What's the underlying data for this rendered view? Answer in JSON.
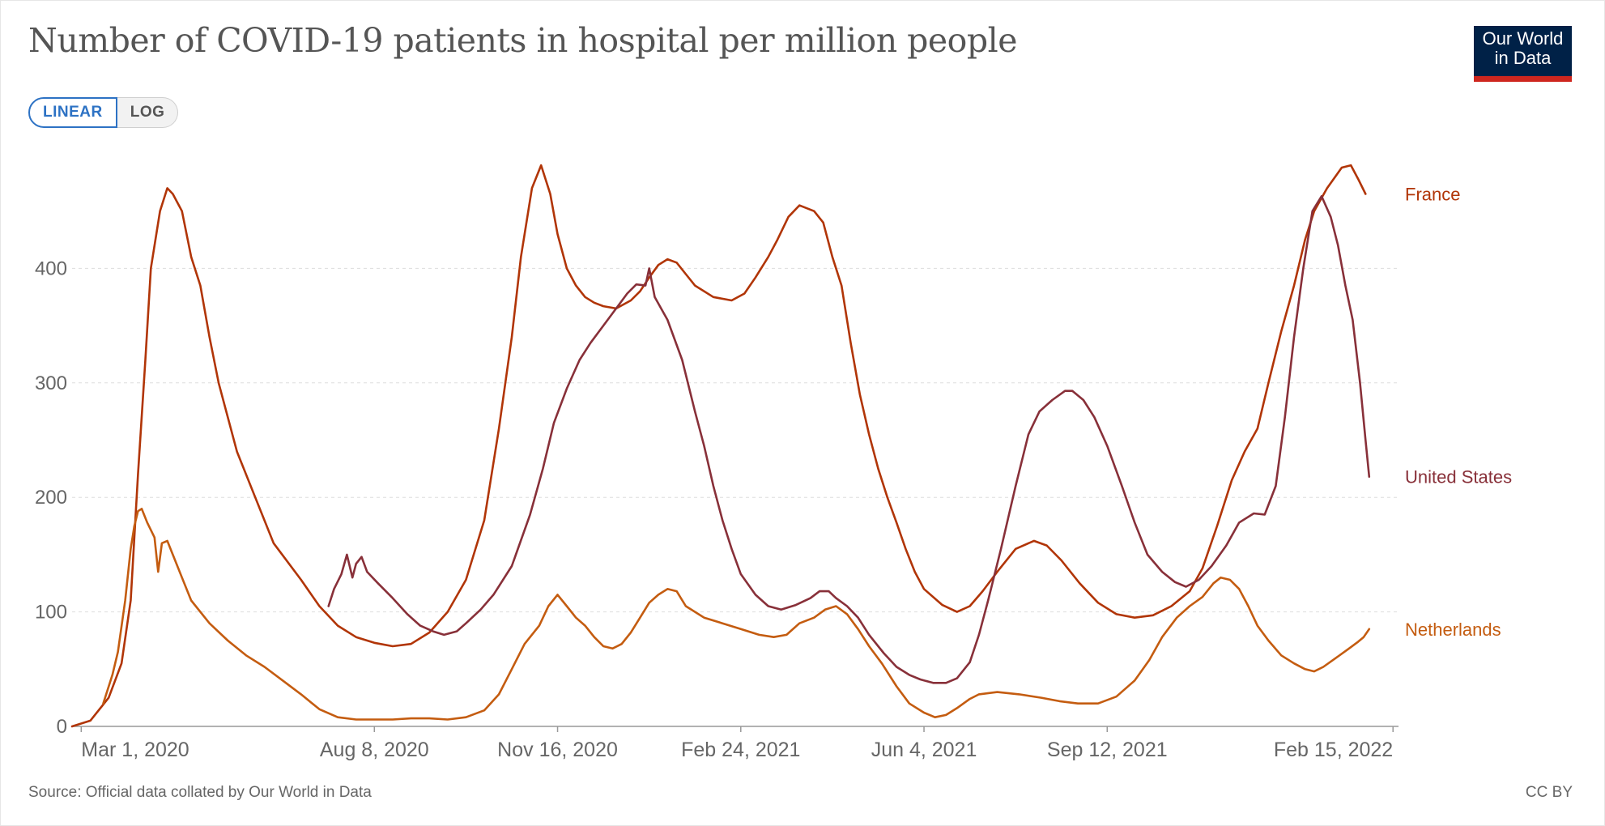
{
  "header": {
    "title": "Number of COVID-19 patients in hospital per million people",
    "logo_line1": "Our World",
    "logo_line2": "in Data"
  },
  "scale_toggle": {
    "linear_label": "LINEAR",
    "log_label": "LOG",
    "selected": "LINEAR"
  },
  "footer": {
    "source": "Source: Official data collated by Our World in Data",
    "license": "CC BY"
  },
  "colors": {
    "france": "#b13507",
    "united_states": "#883039",
    "netherlands": "#c45c10",
    "grid": "#dddddd",
    "axis": "#999999",
    "text": "#666666"
  },
  "chart_data": {
    "type": "line",
    "title": "Number of COVID-19 patients in hospital per million people",
    "xlabel": "",
    "ylabel": "",
    "x_unit": "days since 2020-03-01",
    "xlim": [
      -5,
      719
    ],
    "ylim": [
      0,
      500
    ],
    "yticks": [
      0,
      100,
      200,
      300,
      400
    ],
    "xticks": [
      {
        "label": "Mar 1, 2020",
        "x": 0
      },
      {
        "label": "Aug 8, 2020",
        "x": 160
      },
      {
        "label": "Nov 16, 2020",
        "x": 260
      },
      {
        "label": "Feb 24, 2021",
        "x": 360
      },
      {
        "label": "Jun 4, 2021",
        "x": 460
      },
      {
        "label": "Sep 12, 2021",
        "x": 560
      },
      {
        "label": "Feb 15, 2022",
        "x": 716
      }
    ],
    "grid": true,
    "series": [
      {
        "name": "France",
        "points": [
          [
            -5,
            0
          ],
          [
            5,
            5
          ],
          [
            15,
            25
          ],
          [
            22,
            55
          ],
          [
            27,
            110
          ],
          [
            31,
            220
          ],
          [
            35,
            320
          ],
          [
            38,
            400
          ],
          [
            43,
            450
          ],
          [
            47,
            470
          ],
          [
            50,
            465
          ],
          [
            55,
            450
          ],
          [
            60,
            410
          ],
          [
            65,
            385
          ],
          [
            70,
            340
          ],
          [
            75,
            300
          ],
          [
            85,
            240
          ],
          [
            95,
            200
          ],
          [
            105,
            160
          ],
          [
            120,
            128
          ],
          [
            130,
            105
          ],
          [
            140,
            88
          ],
          [
            150,
            78
          ],
          [
            160,
            73
          ],
          [
            170,
            70
          ],
          [
            180,
            72
          ],
          [
            190,
            82
          ],
          [
            200,
            100
          ],
          [
            210,
            128
          ],
          [
            220,
            180
          ],
          [
            228,
            260
          ],
          [
            235,
            340
          ],
          [
            240,
            410
          ],
          [
            246,
            470
          ],
          [
            251,
            490
          ],
          [
            256,
            465
          ],
          [
            260,
            430
          ],
          [
            265,
            400
          ],
          [
            270,
            385
          ],
          [
            275,
            375
          ],
          [
            280,
            370
          ],
          [
            285,
            367
          ],
          [
            292,
            365
          ],
          [
            300,
            372
          ],
          [
            305,
            380
          ],
          [
            310,
            392
          ],
          [
            315,
            403
          ],
          [
            320,
            408
          ],
          [
            325,
            405
          ],
          [
            330,
            395
          ],
          [
            335,
            385
          ],
          [
            345,
            375
          ],
          [
            355,
            372
          ],
          [
            362,
            378
          ],
          [
            368,
            392
          ],
          [
            375,
            410
          ],
          [
            380,
            425
          ],
          [
            386,
            445
          ],
          [
            392,
            455
          ],
          [
            400,
            450
          ],
          [
            405,
            440
          ],
          [
            410,
            410
          ],
          [
            415,
            385
          ],
          [
            420,
            335
          ],
          [
            425,
            290
          ],
          [
            430,
            255
          ],
          [
            435,
            225
          ],
          [
            440,
            200
          ],
          [
            445,
            178
          ],
          [
            450,
            155
          ],
          [
            455,
            135
          ],
          [
            460,
            120
          ],
          [
            470,
            106
          ],
          [
            478,
            100
          ],
          [
            485,
            105
          ],
          [
            492,
            118
          ],
          [
            500,
            135
          ],
          [
            510,
            155
          ],
          [
            520,
            162
          ],
          [
            527,
            158
          ],
          [
            535,
            145
          ],
          [
            545,
            125
          ],
          [
            555,
            108
          ],
          [
            565,
            98
          ],
          [
            575,
            95
          ],
          [
            585,
            97
          ],
          [
            595,
            105
          ],
          [
            605,
            118
          ],
          [
            612,
            138
          ],
          [
            620,
            175
          ],
          [
            628,
            215
          ],
          [
            635,
            240
          ],
          [
            642,
            260
          ],
          [
            648,
            300
          ],
          [
            655,
            345
          ],
          [
            662,
            385
          ],
          [
            668,
            425
          ],
          [
            673,
            450
          ],
          [
            680,
            470
          ],
          [
            688,
            488
          ],
          [
            693,
            490
          ],
          [
            697,
            478
          ],
          [
            701,
            465
          ]
        ]
      },
      {
        "name": "United States",
        "points": [
          [
            135,
            105
          ],
          [
            138,
            120
          ],
          [
            142,
            133
          ],
          [
            145,
            150
          ],
          [
            148,
            130
          ],
          [
            150,
            142
          ],
          [
            153,
            148
          ],
          [
            156,
            135
          ],
          [
            162,
            125
          ],
          [
            170,
            112
          ],
          [
            178,
            98
          ],
          [
            185,
            88
          ],
          [
            192,
            83
          ],
          [
            198,
            80
          ],
          [
            205,
            83
          ],
          [
            210,
            90
          ],
          [
            218,
            102
          ],
          [
            225,
            115
          ],
          [
            235,
            140
          ],
          [
            245,
            185
          ],
          [
            252,
            225
          ],
          [
            258,
            265
          ],
          [
            265,
            295
          ],
          [
            272,
            320
          ],
          [
            278,
            335
          ],
          [
            285,
            350
          ],
          [
            292,
            365
          ],
          [
            298,
            378
          ],
          [
            303,
            386
          ],
          [
            308,
            385
          ],
          [
            310,
            400
          ],
          [
            313,
            375
          ],
          [
            320,
            355
          ],
          [
            328,
            320
          ],
          [
            335,
            275
          ],
          [
            340,
            245
          ],
          [
            345,
            210
          ],
          [
            350,
            180
          ],
          [
            355,
            155
          ],
          [
            360,
            133
          ],
          [
            368,
            115
          ],
          [
            375,
            105
          ],
          [
            382,
            102
          ],
          [
            390,
            106
          ],
          [
            398,
            112
          ],
          [
            403,
            118
          ],
          [
            408,
            118
          ],
          [
            412,
            112
          ],
          [
            418,
            105
          ],
          [
            424,
            95
          ],
          [
            430,
            80
          ],
          [
            438,
            64
          ],
          [
            445,
            52
          ],
          [
            452,
            45
          ],
          [
            458,
            41
          ],
          [
            465,
            38
          ],
          [
            472,
            38
          ],
          [
            478,
            42
          ],
          [
            485,
            56
          ],
          [
            490,
            80
          ],
          [
            495,
            110
          ],
          [
            502,
            155
          ],
          [
            510,
            210
          ],
          [
            517,
            255
          ],
          [
            523,
            275
          ],
          [
            530,
            285
          ],
          [
            537,
            293
          ],
          [
            541,
            293
          ],
          [
            547,
            285
          ],
          [
            553,
            270
          ],
          [
            560,
            245
          ],
          [
            568,
            210
          ],
          [
            575,
            178
          ],
          [
            582,
            150
          ],
          [
            590,
            135
          ],
          [
            597,
            126
          ],
          [
            603,
            122
          ],
          [
            610,
            128
          ],
          [
            617,
            140
          ],
          [
            625,
            158
          ],
          [
            632,
            178
          ],
          [
            640,
            186
          ],
          [
            646,
            185
          ],
          [
            652,
            210
          ],
          [
            657,
            270
          ],
          [
            662,
            340
          ],
          [
            667,
            400
          ],
          [
            672,
            450
          ],
          [
            677,
            463
          ],
          [
            682,
            445
          ],
          [
            686,
            420
          ],
          [
            690,
            385
          ],
          [
            694,
            355
          ],
          [
            698,
            300
          ],
          [
            701,
            250
          ],
          [
            703,
            218
          ]
        ]
      },
      {
        "name": "Netherlands",
        "points": [
          [
            12,
            20
          ],
          [
            17,
            45
          ],
          [
            20,
            65
          ],
          [
            24,
            110
          ],
          [
            27,
            155
          ],
          [
            29,
            175
          ],
          [
            31,
            188
          ],
          [
            33,
            190
          ],
          [
            36,
            178
          ],
          [
            40,
            165
          ],
          [
            42,
            135
          ],
          [
            44,
            160
          ],
          [
            47,
            162
          ],
          [
            50,
            150
          ],
          [
            55,
            130
          ],
          [
            60,
            110
          ],
          [
            70,
            90
          ],
          [
            80,
            75
          ],
          [
            90,
            62
          ],
          [
            100,
            52
          ],
          [
            110,
            40
          ],
          [
            120,
            28
          ],
          [
            130,
            15
          ],
          [
            140,
            8
          ],
          [
            150,
            6
          ],
          [
            160,
            6
          ],
          [
            170,
            6
          ],
          [
            180,
            7
          ],
          [
            190,
            7
          ],
          [
            200,
            6
          ],
          [
            210,
            8
          ],
          [
            220,
            14
          ],
          [
            228,
            28
          ],
          [
            235,
            50
          ],
          [
            242,
            72
          ],
          [
            250,
            88
          ],
          [
            255,
            105
          ],
          [
            260,
            115
          ],
          [
            265,
            105
          ],
          [
            270,
            95
          ],
          [
            275,
            88
          ],
          [
            280,
            78
          ],
          [
            285,
            70
          ],
          [
            290,
            68
          ],
          [
            295,
            72
          ],
          [
            300,
            82
          ],
          [
            305,
            95
          ],
          [
            310,
            108
          ],
          [
            315,
            115
          ],
          [
            320,
            120
          ],
          [
            325,
            118
          ],
          [
            330,
            105
          ],
          [
            340,
            95
          ],
          [
            350,
            90
          ],
          [
            360,
            85
          ],
          [
            370,
            80
          ],
          [
            378,
            78
          ],
          [
            385,
            80
          ],
          [
            392,
            90
          ],
          [
            400,
            95
          ],
          [
            406,
            102
          ],
          [
            412,
            105
          ],
          [
            418,
            98
          ],
          [
            424,
            85
          ],
          [
            430,
            70
          ],
          [
            437,
            55
          ],
          [
            445,
            35
          ],
          [
            452,
            20
          ],
          [
            460,
            12
          ],
          [
            466,
            8
          ],
          [
            472,
            10
          ],
          [
            478,
            16
          ],
          [
            485,
            24
          ],
          [
            490,
            28
          ],
          [
            500,
            30
          ],
          [
            512,
            28
          ],
          [
            524,
            25
          ],
          [
            534,
            22
          ],
          [
            544,
            20
          ],
          [
            555,
            20
          ],
          [
            565,
            26
          ],
          [
            575,
            40
          ],
          [
            583,
            58
          ],
          [
            590,
            78
          ],
          [
            598,
            95
          ],
          [
            605,
            105
          ],
          [
            612,
            113
          ],
          [
            618,
            125
          ],
          [
            622,
            130
          ],
          [
            627,
            128
          ],
          [
            632,
            120
          ],
          [
            637,
            105
          ],
          [
            642,
            88
          ],
          [
            648,
            75
          ],
          [
            655,
            62
          ],
          [
            662,
            55
          ],
          [
            668,
            50
          ],
          [
            673,
            48
          ],
          [
            678,
            52
          ],
          [
            685,
            60
          ],
          [
            692,
            68
          ],
          [
            697,
            74
          ],
          [
            700,
            78
          ],
          [
            703,
            85
          ]
        ]
      }
    ]
  }
}
